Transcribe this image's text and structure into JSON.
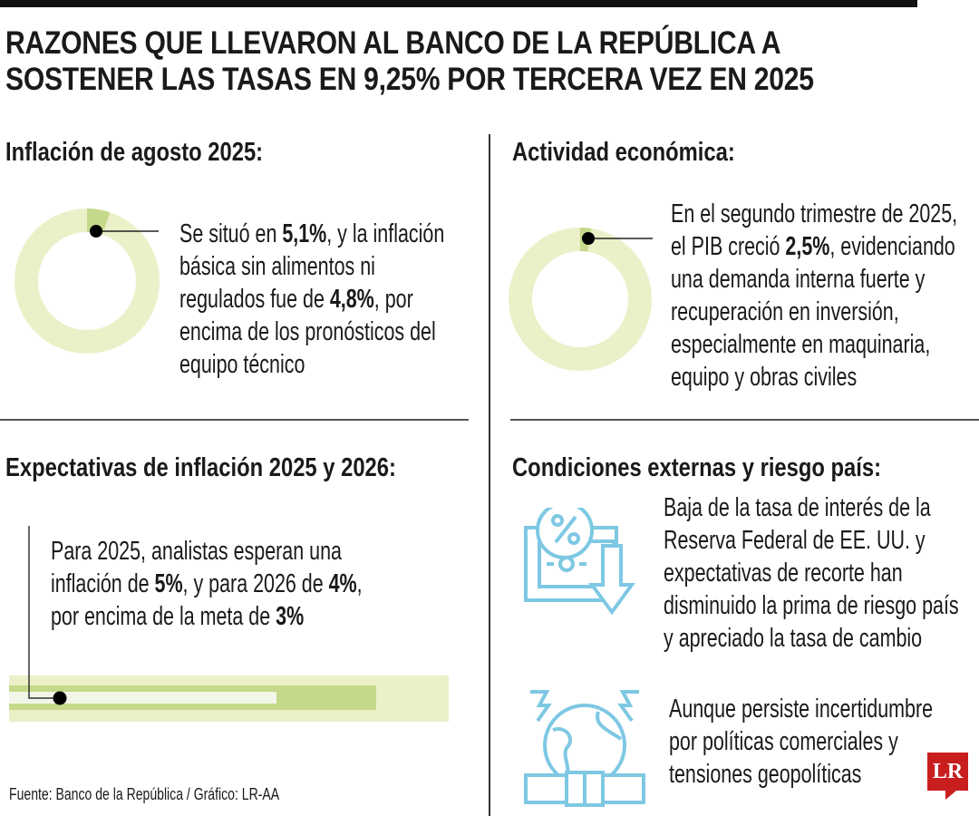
{
  "title": [
    "RAZONES QUE LLEVARON AL BANCO DE LA REPÚBLICA A",
    "SOSTENER LAS TASAS EN 9,25% POR TERCERA VEZ EN 2025"
  ],
  "colors": {
    "light_green": "#ebf0c8",
    "green": "#c5d98a",
    "pale": "#f2f6e8",
    "icon_blue": "#7ec8e3",
    "logo_red": "#c81e1e"
  },
  "sections": {
    "inflation": {
      "heading": "Inflación de agosto 2025:",
      "donut_value_percent": 5.1,
      "lines": [
        [
          {
            "t": "Se situó en "
          },
          {
            "t": "5,1%",
            "b": true
          },
          {
            "t": ", y la inflación"
          }
        ],
        [
          {
            "t": "básica sin alimentos ni"
          }
        ],
        [
          {
            "t": "regulados fue de "
          },
          {
            "t": "4,8%",
            "b": true
          },
          {
            "t": ", por"
          }
        ],
        [
          {
            "t": "encima de los pronósticos del"
          }
        ],
        [
          {
            "t": "equipo técnico"
          }
        ]
      ]
    },
    "activity": {
      "heading": "Actividad económica:",
      "donut_value_percent": 2.5,
      "lines": [
        [
          {
            "t": "En el segundo trimestre de 2025,"
          }
        ],
        [
          {
            "t": "el PIB creció "
          },
          {
            "t": "2,5%",
            "b": true
          },
          {
            "t": ", evidenciando"
          }
        ],
        [
          {
            "t": "una demanda interna fuerte y"
          }
        ],
        [
          {
            "t": "recuperación en inversión,"
          }
        ],
        [
          {
            "t": "especialmente en maquinaria,"
          }
        ],
        [
          {
            "t": "equipo y obras civiles"
          }
        ]
      ]
    },
    "expectations": {
      "heading": "Expectativas de inflación 2025 y 2026:",
      "bar_values_percent": [
        5,
        4,
        3
      ],
      "lines": [
        [
          {
            "t": "Para 2025, analistas esperan una"
          }
        ],
        [
          {
            "t": "inflación de "
          },
          {
            "t": "5%",
            "b": true
          },
          {
            "t": ", y para 2026 de "
          },
          {
            "t": "4%",
            "b": true
          },
          {
            "t": ","
          }
        ],
        [
          {
            "t": "por encima de la meta de "
          },
          {
            "t": "3%",
            "b": true
          }
        ]
      ]
    },
    "external": {
      "heading": "Condiciones externas y riesgo país:",
      "icons": [
        "percent-rate-down-icon",
        "globe-tension-icon"
      ],
      "lines": [
        [
          {
            "t": "Baja de la tasa de interés de la"
          }
        ],
        [
          {
            "t": "Reserva Federal de EE.  UU. y"
          }
        ],
        [
          {
            "t": "expectativas de recorte han"
          }
        ],
        [
          {
            "t": "disminuido la prima de riesgo país"
          }
        ],
        [
          {
            "t": "y apreciado la tasa de cambio"
          }
        ]
      ],
      "lines2": [
        [
          {
            "t": "Aunque persiste incertidumbre"
          }
        ],
        [
          {
            "t": "por políticas comerciales y"
          }
        ],
        [
          {
            "t": "tensiones geopolíticas"
          }
        ]
      ]
    }
  },
  "source": "Fuente: Banco de la República  / Gráfico: LR-AA",
  "logo": "LR"
}
